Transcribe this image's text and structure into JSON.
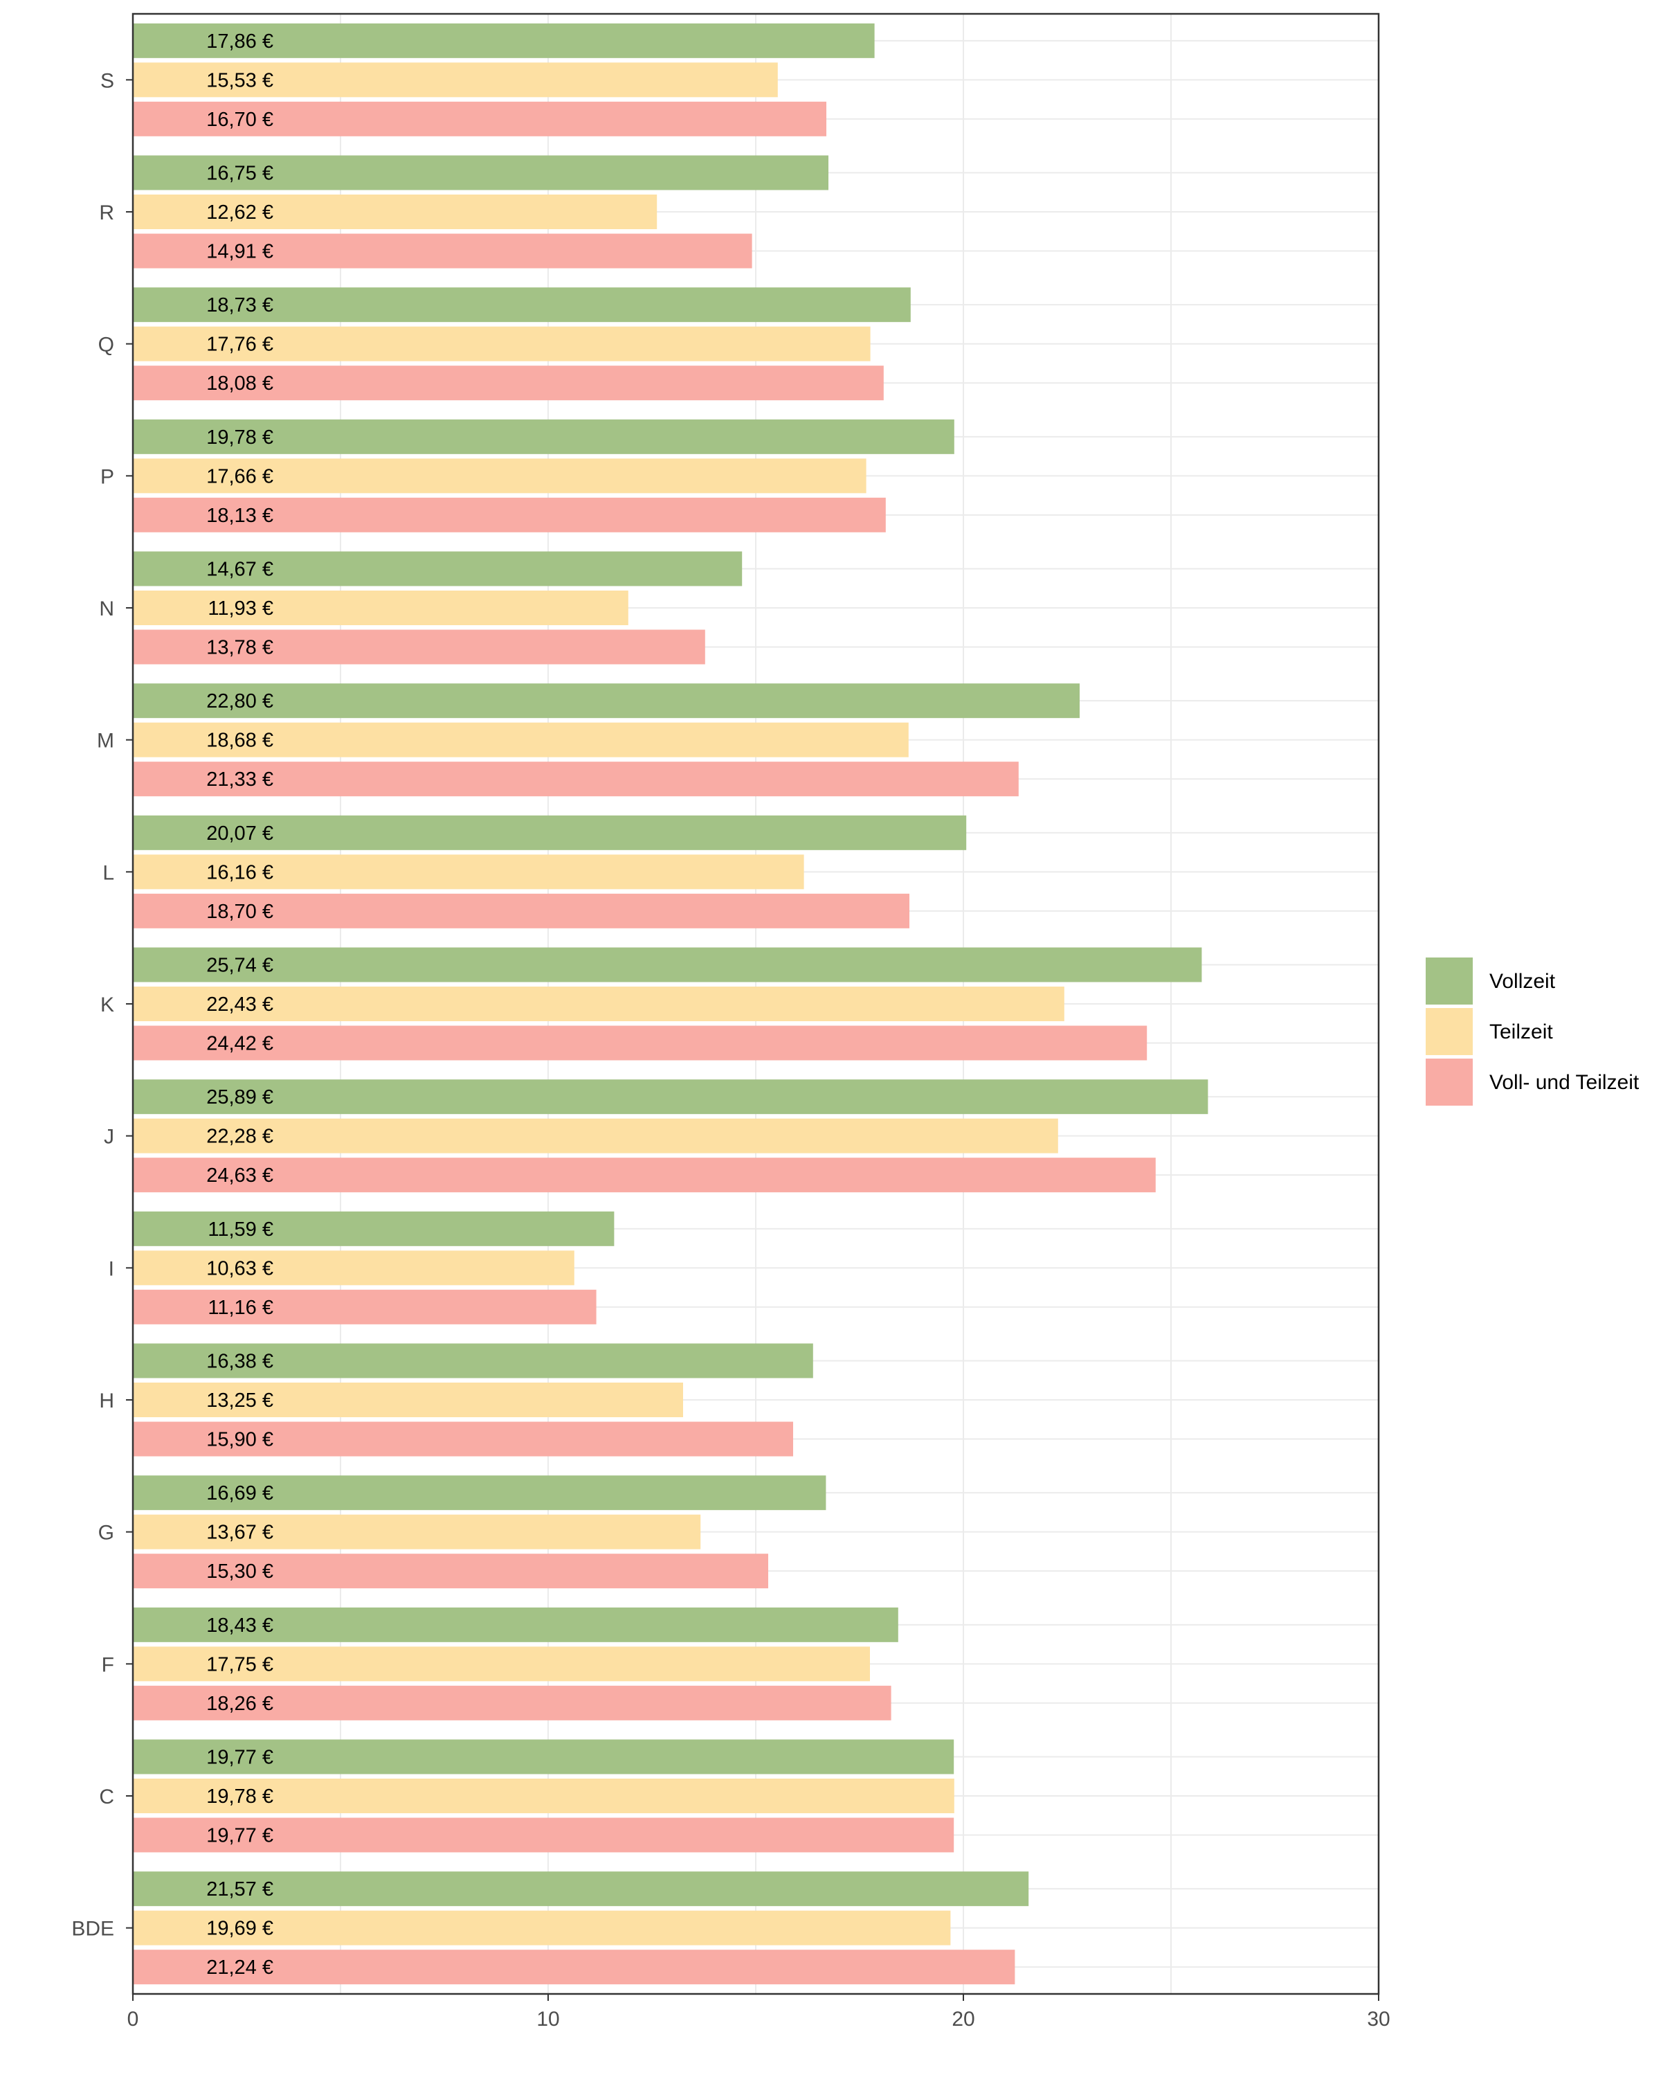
{
  "chart_data": {
    "type": "bar",
    "orientation": "horizontal",
    "title": "",
    "xlabel": "",
    "ylabel": "",
    "xlim": [
      0,
      30
    ],
    "x_ticks": [
      0,
      10,
      20,
      30
    ],
    "grid": true,
    "legend_position": "right",
    "value_suffix": " €",
    "categories": [
      "S",
      "R",
      "Q",
      "P",
      "N",
      "M",
      "L",
      "K",
      "J",
      "I",
      "H",
      "G",
      "F",
      "C",
      "BDE"
    ],
    "series": [
      {
        "name": "Vollzeit",
        "color": "#a3c286",
        "values": [
          17.86,
          16.75,
          18.73,
          19.78,
          14.67,
          22.8,
          20.07,
          25.74,
          25.89,
          11.59,
          16.38,
          16.69,
          18.43,
          19.77,
          21.57
        ],
        "labels": [
          "17,86 €",
          "16,75 €",
          "18,73 €",
          "19,78 €",
          "14,67 €",
          "22,80 €",
          "20,07 €",
          "25,74 €",
          "25,89 €",
          "11,59 €",
          "16,38 €",
          "16,69 €",
          "18,43 €",
          "19,77 €",
          "21,57 €"
        ]
      },
      {
        "name": "Teilzeit",
        "color": "#fde0a3",
        "values": [
          15.53,
          12.62,
          17.76,
          17.66,
          11.93,
          18.68,
          16.16,
          22.43,
          22.28,
          10.63,
          13.25,
          13.67,
          17.75,
          19.78,
          19.69
        ],
        "labels": [
          "15,53 €",
          "12,62 €",
          "17,76 €",
          "17,66 €",
          "11,93 €",
          "18,68 €",
          "16,16 €",
          "22,43 €",
          "22,28 €",
          "10,63 €",
          "13,25 €",
          "13,67 €",
          "17,75 €",
          "19,78 €",
          "19,69 €"
        ]
      },
      {
        "name": "Voll- und Teilzeit",
        "color": "#f9aca5",
        "values": [
          16.7,
          14.91,
          18.08,
          18.13,
          13.78,
          21.33,
          18.7,
          24.42,
          24.63,
          11.16,
          15.9,
          15.3,
          18.26,
          19.77,
          21.24
        ],
        "labels": [
          "16,70 €",
          "14,91 €",
          "18,08 €",
          "18,13 €",
          "13,78 €",
          "21,33 €",
          "18,70 €",
          "24,42 €",
          "24,63 €",
          "11,16 €",
          "15,90 €",
          "15,30 €",
          "18,26 €",
          "19,77 €",
          "21,24 €"
        ]
      }
    ]
  }
}
